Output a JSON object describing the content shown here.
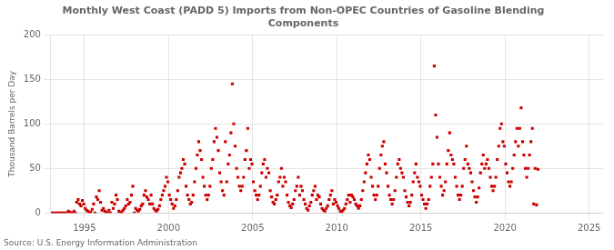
{
  "chart_data": {
    "type": "scatter",
    "title": "Monthly West Coast (PADD 5) Imports from Non-OPEC Countries of Gasoline Blending\nComponents",
    "ylabel": "Thousand Barrels per Day",
    "source": "Source: U.S. Energy Information Administration",
    "color": "#CC0000",
    "marker": "square",
    "grid": true,
    "xlim": [
      1993.0,
      2025.83
    ],
    "ylim": [
      0,
      200
    ],
    "xticks": [
      1995,
      2000,
      2005,
      2010,
      2015,
      2020,
      2025
    ],
    "yticks": [
      0,
      50,
      100,
      150,
      200
    ],
    "x": [
      1993.04167,
      1993.125,
      1993.20833,
      1993.29167,
      1993.375,
      1993.45833,
      1993.54167,
      1993.625,
      1993.70833,
      1993.79167,
      1993.875,
      1993.95833,
      1994.04167,
      1994.125,
      1994.20833,
      1994.29167,
      1994.375,
      1994.45833,
      1994.54167,
      1994.625,
      1994.70833,
      1994.79167,
      1994.875,
      1994.95833,
      1995.04167,
      1995.125,
      1995.20833,
      1995.29167,
      1995.375,
      1995.45833,
      1995.54167,
      1995.625,
      1995.70833,
      1995.79167,
      1995.875,
      1995.95833,
      1996.04167,
      1996.125,
      1996.20833,
      1996.29167,
      1996.375,
      1996.45833,
      1996.54167,
      1996.625,
      1996.70833,
      1996.79167,
      1996.875,
      1996.95833,
      1997.04167,
      1997.125,
      1997.20833,
      1997.29167,
      1997.375,
      1997.45833,
      1997.54167,
      1997.625,
      1997.70833,
      1997.79167,
      1997.875,
      1997.95833,
      1998.04167,
      1998.125,
      1998.20833,
      1998.29167,
      1998.375,
      1998.45833,
      1998.54167,
      1998.625,
      1998.70833,
      1998.79167,
      1998.875,
      1998.95833,
      1999.04167,
      1999.125,
      1999.20833,
      1999.29167,
      1999.375,
      1999.45833,
      1999.54167,
      1999.625,
      1999.70833,
      1999.79167,
      1999.875,
      1999.95833,
      2000.04167,
      2000.125,
      2000.20833,
      2000.29167,
      2000.375,
      2000.45833,
      2000.54167,
      2000.625,
      2000.70833,
      2000.79167,
      2000.875,
      2000.95833,
      2001.04167,
      2001.125,
      2001.20833,
      2001.29167,
      2001.375,
      2001.45833,
      2001.54167,
      2001.625,
      2001.70833,
      2001.79167,
      2001.875,
      2001.95833,
      2002.04167,
      2002.125,
      2002.20833,
      2002.29167,
      2002.375,
      2002.45833,
      2002.54167,
      2002.625,
      2002.70833,
      2002.79167,
      2002.875,
      2002.95833,
      2003.04167,
      2003.125,
      2003.20833,
      2003.29167,
      2003.375,
      2003.45833,
      2003.54167,
      2003.625,
      2003.70833,
      2003.79167,
      2003.875,
      2003.95833,
      2004.04167,
      2004.125,
      2004.20833,
      2004.29167,
      2004.375,
      2004.45833,
      2004.54167,
      2004.625,
      2004.70833,
      2004.79167,
      2004.875,
      2004.95833,
      2005.04167,
      2005.125,
      2005.20833,
      2005.29167,
      2005.375,
      2005.45833,
      2005.54167,
      2005.625,
      2005.70833,
      2005.79167,
      2005.875,
      2005.95833,
      2006.04167,
      2006.125,
      2006.20833,
      2006.29167,
      2006.375,
      2006.45833,
      2006.54167,
      2006.625,
      2006.70833,
      2006.79167,
      2006.875,
      2006.95833,
      2007.04167,
      2007.125,
      2007.20833,
      2007.29167,
      2007.375,
      2007.45833,
      2007.54167,
      2007.625,
      2007.70833,
      2007.79167,
      2007.875,
      2007.95833,
      2008.04167,
      2008.125,
      2008.20833,
      2008.29167,
      2008.375,
      2008.45833,
      2008.54167,
      2008.625,
      2008.70833,
      2008.79167,
      2008.875,
      2008.95833,
      2009.04167,
      2009.125,
      2009.20833,
      2009.29167,
      2009.375,
      2009.45833,
      2009.54167,
      2009.625,
      2009.70833,
      2009.79167,
      2009.875,
      2009.95833,
      2010.04167,
      2010.125,
      2010.20833,
      2010.29167,
      2010.375,
      2010.45833,
      2010.54167,
      2010.625,
      2010.70833,
      2010.79167,
      2010.875,
      2010.95833,
      2011.04167,
      2011.125,
      2011.20833,
      2011.29167,
      2011.375,
      2011.45833,
      2011.54167,
      2011.625,
      2011.70833,
      2011.79167,
      2011.875,
      2011.95833,
      2012.04167,
      2012.125,
      2012.20833,
      2012.29167,
      2012.375,
      2012.45833,
      2012.54167,
      2012.625,
      2012.70833,
      2012.79167,
      2012.875,
      2012.95833,
      2013.04167,
      2013.125,
      2013.20833,
      2013.29167,
      2013.375,
      2013.45833,
      2013.54167,
      2013.625,
      2013.70833,
      2013.79167,
      2013.875,
      2013.95833,
      2014.04167,
      2014.125,
      2014.20833,
      2014.29167,
      2014.375,
      2014.45833,
      2014.54167,
      2014.625,
      2014.70833,
      2014.79167,
      2014.875,
      2014.95833,
      2015.04167,
      2015.125,
      2015.20833,
      2015.29167,
      2015.375,
      2015.45833,
      2015.54167,
      2015.625,
      2015.70833,
      2015.79167,
      2015.875,
      2015.95833,
      2016.04167,
      2016.125,
      2016.20833,
      2016.29167,
      2016.375,
      2016.45833,
      2016.54167,
      2016.625,
      2016.70833,
      2016.79167,
      2016.875,
      2016.95833,
      2017.04167,
      2017.125,
      2017.20833,
      2017.29167,
      2017.375,
      2017.45833,
      2017.54167,
      2017.625,
      2017.70833,
      2017.79167,
      2017.875,
      2017.95833,
      2018.04167,
      2018.125,
      2018.20833,
      2018.29167,
      2018.375,
      2018.45833,
      2018.54167,
      2018.625,
      2018.70833,
      2018.79167,
      2018.875,
      2018.95833,
      2019.04167,
      2019.125,
      2019.20833,
      2019.29167,
      2019.375,
      2019.45833,
      2019.54167,
      2019.625,
      2019.70833,
      2019.79167,
      2019.875,
      2019.95833,
      2020.04167,
      2020.125,
      2020.20833,
      2020.29167,
      2020.375,
      2020.45833,
      2020.54167,
      2020.625,
      2020.70833,
      2020.79167,
      2020.875,
      2020.95833,
      2021.04167,
      2021.125,
      2021.20833,
      2021.29167,
      2021.375,
      2021.45833,
      2021.54167,
      2021.625,
      2021.70833,
      2021.79167,
      2021.875,
      2021.95833
    ],
    "values": [
      0,
      0,
      0,
      0,
      0,
      0,
      0,
      0,
      0,
      0,
      0,
      0,
      2,
      1,
      0,
      0,
      2,
      0,
      12,
      15,
      10,
      8,
      14,
      10,
      5,
      3,
      2,
      0,
      1,
      4,
      10,
      0,
      18,
      15,
      25,
      12,
      3,
      5,
      2,
      1,
      0,
      3,
      0,
      12,
      5,
      10,
      20,
      15,
      2,
      0,
      1,
      3,
      5,
      8,
      15,
      10,
      12,
      20,
      30,
      0,
      5,
      3,
      2,
      4,
      8,
      10,
      20,
      25,
      18,
      15,
      10,
      20,
      10,
      5,
      3,
      2,
      4,
      8,
      15,
      20,
      25,
      30,
      40,
      35,
      20,
      15,
      10,
      5,
      8,
      15,
      25,
      40,
      45,
      50,
      60,
      55,
      30,
      20,
      15,
      10,
      12,
      20,
      35,
      50,
      65,
      80,
      70,
      60,
      40,
      30,
      20,
      15,
      20,
      30,
      50,
      60,
      80,
      95,
      85,
      70,
      45,
      35,
      25,
      20,
      80,
      35,
      55,
      65,
      90,
      145,
      100,
      75,
      50,
      40,
      30,
      25,
      30,
      40,
      60,
      70,
      95,
      50,
      60,
      55,
      35,
      25,
      20,
      15,
      20,
      30,
      45,
      55,
      60,
      40,
      50,
      45,
      25,
      18,
      12,
      10,
      15,
      20,
      35,
      40,
      50,
      30,
      40,
      35,
      20,
      12,
      8,
      6,
      10,
      15,
      25,
      30,
      40,
      20,
      30,
      25,
      15,
      10,
      5,
      3,
      8,
      12,
      20,
      25,
      30,
      15,
      20,
      18,
      10,
      5,
      3,
      2,
      5,
      8,
      15,
      20,
      25,
      10,
      15,
      12,
      8,
      5,
      2,
      1,
      3,
      5,
      10,
      15,
      20,
      12,
      20,
      18,
      15,
      10,
      8,
      5,
      8,
      15,
      25,
      35,
      45,
      55,
      65,
      60,
      40,
      30,
      20,
      15,
      20,
      30,
      50,
      65,
      75,
      80,
      55,
      45,
      30,
      20,
      15,
      10,
      15,
      25,
      40,
      55,
      60,
      50,
      45,
      40,
      25,
      18,
      12,
      8,
      12,
      20,
      35,
      45,
      55,
      40,
      35,
      30,
      20,
      15,
      10,
      5,
      10,
      15,
      30,
      40,
      55,
      165,
      110,
      85,
      55,
      40,
      30,
      20,
      25,
      35,
      55,
      70,
      90,
      65,
      60,
      55,
      40,
      30,
      20,
      15,
      20,
      30,
      50,
      60,
      75,
      55,
      50,
      45,
      35,
      25,
      18,
      12,
      18,
      28,
      45,
      55,
      65,
      50,
      55,
      60,
      50,
      40,
      30,
      25,
      30,
      40,
      60,
      75,
      95,
      100,
      80,
      75,
      55,
      45,
      35,
      30,
      35,
      50,
      65,
      80,
      95,
      75,
      95,
      118,
      80,
      65,
      50,
      40,
      50,
      65,
      80,
      95,
      10,
      50,
      9,
      49
    ]
  }
}
